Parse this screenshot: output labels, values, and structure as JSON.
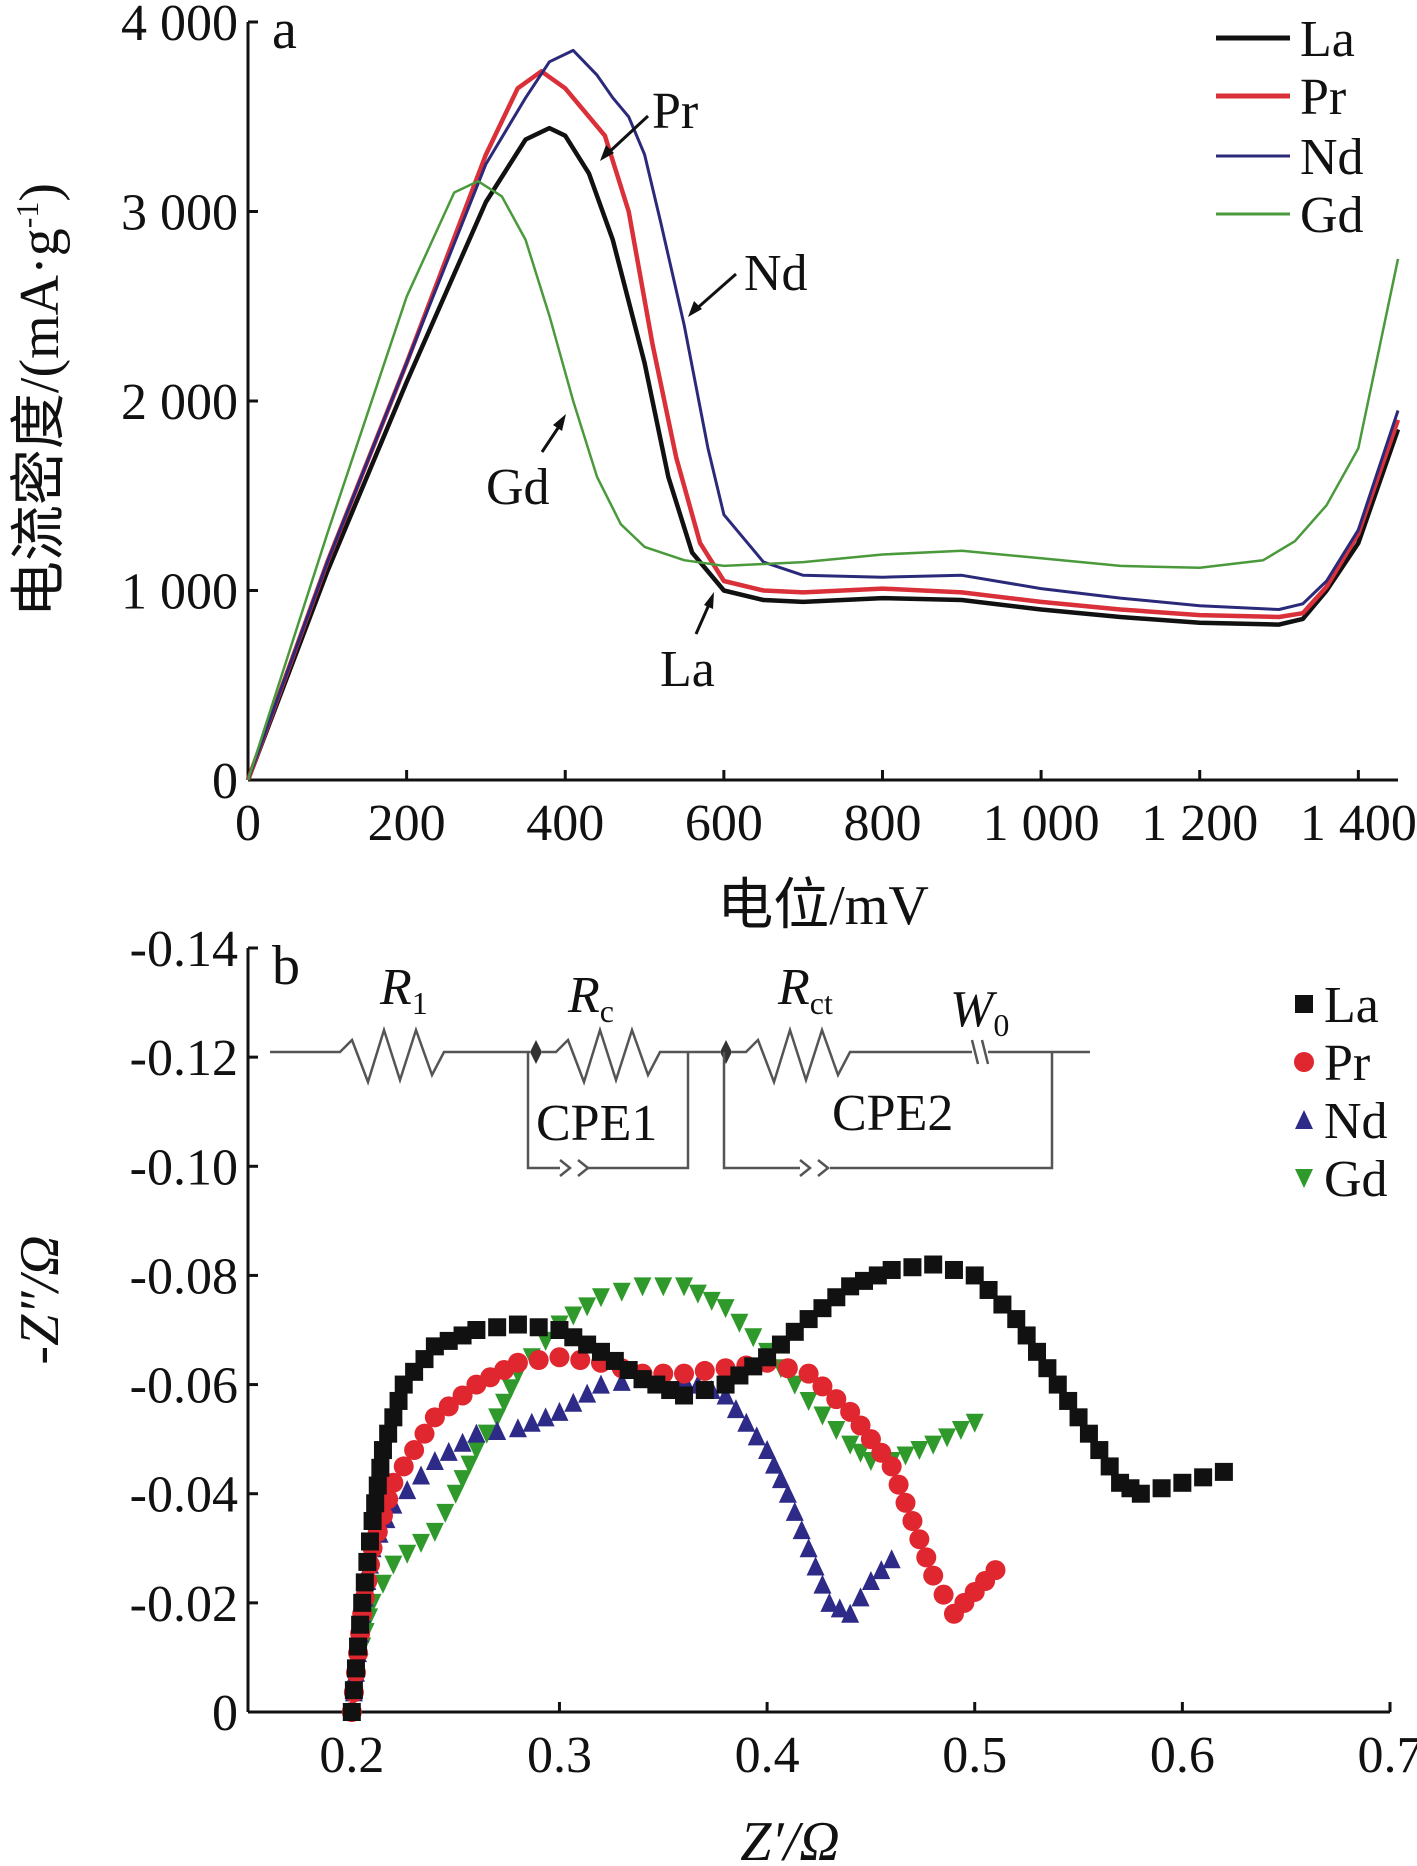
{
  "chart_data": [
    {
      "panel": "a",
      "type": "line",
      "title": "",
      "xlabel": "电位/mV",
      "ylabel": "电流密度/(mA·g",
      "ylabel_sup": "-1",
      "ylabel_end": ")",
      "xlim": [
        0,
        1450
      ],
      "ylim": [
        0,
        4000
      ],
      "xticks": [
        0,
        200,
        400,
        600,
        800,
        1000,
        1200,
        1400
      ],
      "xtick_labels": [
        "0",
        "200",
        "400",
        "600",
        "800",
        "1 000",
        "1 200",
        "1 400"
      ],
      "yticks": [
        0,
        1000,
        2000,
        3000,
        4000
      ],
      "ytick_labels": [
        "0",
        "1 000",
        "2 000",
        "3 000",
        "4 000"
      ],
      "legend_position": "top-right",
      "series": [
        {
          "name": "La",
          "color": "#111111",
          "x": [
            0,
            100,
            200,
            300,
            350,
            380,
            400,
            430,
            460,
            500,
            530,
            560,
            600,
            650,
            700,
            800,
            900,
            1000,
            1100,
            1200,
            1300,
            1330,
            1360,
            1400,
            1450
          ],
          "y": [
            0,
            1100,
            2100,
            3050,
            3380,
            3440,
            3400,
            3200,
            2850,
            2200,
            1600,
            1200,
            1000,
            950,
            940,
            960,
            950,
            900,
            860,
            830,
            820,
            850,
            1000,
            1250,
            1850
          ]
        },
        {
          "name": "Pr",
          "color": "#d9303a",
          "x": [
            0,
            100,
            200,
            300,
            340,
            370,
            400,
            420,
            450,
            480,
            510,
            540,
            570,
            600,
            650,
            700,
            800,
            900,
            1000,
            1100,
            1200,
            1300,
            1330,
            1360,
            1400,
            1450
          ],
          "y": [
            0,
            1150,
            2200,
            3300,
            3650,
            3740,
            3650,
            3550,
            3400,
            3000,
            2300,
            1700,
            1250,
            1050,
            1000,
            990,
            1010,
            990,
            940,
            900,
            870,
            860,
            880,
            1020,
            1300,
            1900
          ]
        },
        {
          "name": "Nd",
          "color": "#2b2a7a",
          "x": [
            0,
            100,
            200,
            300,
            350,
            380,
            410,
            440,
            460,
            480,
            500,
            520,
            550,
            580,
            600,
            650,
            700,
            800,
            900,
            1000,
            1100,
            1200,
            1300,
            1330,
            1360,
            1400,
            1450
          ],
          "y": [
            0,
            1150,
            2200,
            3250,
            3600,
            3790,
            3850,
            3720,
            3600,
            3500,
            3300,
            2950,
            2400,
            1750,
            1400,
            1150,
            1080,
            1070,
            1080,
            1010,
            960,
            920,
            900,
            930,
            1050,
            1320,
            1950
          ]
        },
        {
          "name": "Gd",
          "color": "#4a9a3c",
          "x": [
            0,
            100,
            200,
            260,
            290,
            320,
            350,
            380,
            410,
            440,
            470,
            500,
            550,
            600,
            700,
            800,
            900,
            1000,
            1100,
            1200,
            1280,
            1320,
            1360,
            1400,
            1450
          ],
          "y": [
            0,
            1300,
            2550,
            3100,
            3160,
            3080,
            2850,
            2450,
            2000,
            1600,
            1350,
            1230,
            1160,
            1130,
            1150,
            1190,
            1210,
            1170,
            1130,
            1120,
            1160,
            1260,
            1450,
            1750,
            2750
          ]
        }
      ],
      "annotations": [
        {
          "text": "Pr",
          "series": "Pr"
        },
        {
          "text": "Nd",
          "series": "Nd"
        },
        {
          "text": "Gd",
          "series": "Gd"
        },
        {
          "text": "La",
          "series": "La"
        }
      ]
    },
    {
      "panel": "b",
      "type": "scatter",
      "title": "",
      "xlabel": "Z′/Ω",
      "ylabel": "-Z″/Ω",
      "xlim": [
        0.15,
        0.7
      ],
      "ylim": [
        0,
        -0.14
      ],
      "xticks": [
        0.2,
        0.3,
        0.4,
        0.5,
        0.6,
        0.7
      ],
      "xtick_labels": [
        "0.2",
        "0.3",
        "0.4",
        "0.5",
        "0.6",
        "0.7"
      ],
      "yticks": [
        0,
        -0.02,
        -0.04,
        -0.06,
        -0.08,
        -0.1,
        -0.12,
        -0.14
      ],
      "ytick_labels": [
        "0",
        "-0.02",
        "-0.04",
        "-0.06",
        "-0.08",
        "-0.10",
        "-0.12",
        "-0.14"
      ],
      "legend_position": "top-right",
      "series": [
        {
          "name": "La",
          "color": "#111111",
          "marker": "square",
          "x": [
            0.2,
            0.205,
            0.21,
            0.215,
            0.225,
            0.24,
            0.26,
            0.28,
            0.3,
            0.32,
            0.34,
            0.36,
            0.38,
            0.4,
            0.42,
            0.44,
            0.46,
            0.48,
            0.5,
            0.52,
            0.54,
            0.56,
            0.57,
            0.58,
            0.6,
            0.62
          ],
          "y": [
            0,
            -0.02,
            -0.035,
            -0.048,
            -0.06,
            -0.067,
            -0.07,
            -0.071,
            -0.07,
            -0.066,
            -0.061,
            -0.058,
            -0.06,
            -0.065,
            -0.072,
            -0.078,
            -0.081,
            -0.082,
            -0.08,
            -0.072,
            -0.06,
            -0.048,
            -0.042,
            -0.04,
            -0.042,
            -0.044
          ]
        },
        {
          "name": "Pr",
          "color": "#e0262e",
          "marker": "circle",
          "x": [
            0.2,
            0.205,
            0.21,
            0.22,
            0.24,
            0.26,
            0.28,
            0.3,
            0.32,
            0.34,
            0.36,
            0.38,
            0.4,
            0.42,
            0.44,
            0.46,
            0.47,
            0.48,
            0.49,
            0.5,
            0.51
          ],
          "y": [
            0,
            -0.018,
            -0.03,
            -0.042,
            -0.054,
            -0.06,
            -0.064,
            -0.065,
            -0.064,
            -0.062,
            -0.062,
            -0.063,
            -0.064,
            -0.062,
            -0.055,
            -0.045,
            -0.035,
            -0.025,
            -0.018,
            -0.022,
            -0.026
          ]
        },
        {
          "name": "Nd",
          "color": "#2e2a88",
          "marker": "triangle-up",
          "x": [
            0.2,
            0.205,
            0.21,
            0.22,
            0.24,
            0.26,
            0.28,
            0.3,
            0.32,
            0.34,
            0.36,
            0.38,
            0.4,
            0.41,
            0.42,
            0.43,
            0.44,
            0.45,
            0.46
          ],
          "y": [
            0,
            -0.018,
            -0.03,
            -0.038,
            -0.046,
            -0.051,
            -0.052,
            -0.055,
            -0.06,
            -0.061,
            -0.061,
            -0.058,
            -0.048,
            -0.04,
            -0.03,
            -0.02,
            -0.018,
            -0.024,
            -0.028
          ]
        },
        {
          "name": "Gd",
          "color": "#2f9a2b",
          "marker": "triangle-down",
          "x": [
            0.2,
            0.205,
            0.21,
            0.22,
            0.24,
            0.25,
            0.26,
            0.27,
            0.28,
            0.3,
            0.32,
            0.34,
            0.36,
            0.38,
            0.4,
            0.42,
            0.44,
            0.45,
            0.46,
            0.48,
            0.5
          ],
          "y": [
            0,
            -0.012,
            -0.02,
            -0.027,
            -0.033,
            -0.04,
            -0.048,
            -0.054,
            -0.062,
            -0.071,
            -0.076,
            -0.078,
            -0.078,
            -0.074,
            -0.066,
            -0.057,
            -0.049,
            -0.046,
            -0.046,
            -0.049,
            -0.053
          ]
        }
      ],
      "circuit": {
        "labels": [
          {
            "main": "R",
            "sub": "1"
          },
          {
            "main": "R",
            "sub": "c"
          },
          {
            "main": "R",
            "sub": "ct"
          },
          {
            "main": "W",
            "sub": "0"
          }
        ],
        "cpe_labels": [
          "CPE1",
          "CPE2"
        ]
      }
    }
  ],
  "panel_labels": [
    "a",
    "b"
  ]
}
